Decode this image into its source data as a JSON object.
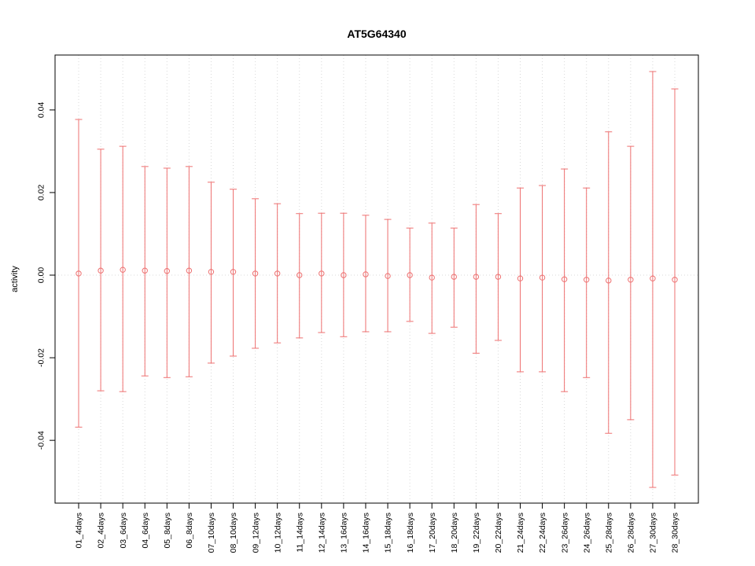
{
  "chart_data": {
    "type": "scatter",
    "title": "AT5G64340",
    "xlabel": "",
    "ylabel": "activity",
    "ylim": [
      -0.0552,
      0.0533
    ],
    "yticks": [
      -0.04,
      -0.02,
      0.0,
      0.02,
      0.04
    ],
    "grid": "dotted vertical line at each category, dotted horizontal line at y=0",
    "legend_position": "none",
    "categories": [
      "01_4days",
      "02_4days",
      "03_6days",
      "04_6days",
      "05_8days",
      "06_8days",
      "07_10days",
      "08_10days",
      "09_12days",
      "10_12days",
      "11_14days",
      "12_14days",
      "13_16days",
      "14_16days",
      "15_18days",
      "16_18days",
      "17_20days",
      "18_20days",
      "19_22days",
      "20_22days",
      "21_24days",
      "22_24days",
      "23_26days",
      "24_26days",
      "25_28days",
      "26_28days",
      "27_30days",
      "28_30days"
    ],
    "series": [
      {
        "name": "mean",
        "values": [
          0.0004,
          0.0011,
          0.0013,
          0.0011,
          0.001,
          0.0011,
          0.0008,
          0.0008,
          0.0004,
          0.0004,
          0.0,
          0.0004,
          0.0,
          0.0002,
          -0.0002,
          0.0,
          -0.0006,
          -0.0004,
          -0.0004,
          -0.0004,
          -0.0008,
          -0.0006,
          -0.001,
          -0.0011,
          -0.0013,
          -0.0011,
          -0.0008,
          -0.0011
        ]
      },
      {
        "name": "upper",
        "values": [
          0.0377,
          0.0305,
          0.0312,
          0.0263,
          0.0259,
          0.0263,
          0.0225,
          0.0208,
          0.0185,
          0.0173,
          0.0149,
          0.015,
          0.015,
          0.0145,
          0.0135,
          0.0114,
          0.0126,
          0.0114,
          0.0171,
          0.0149,
          0.0211,
          0.0217,
          0.0257,
          0.0211,
          0.0347,
          0.0312,
          0.0493,
          0.0451
        ]
      },
      {
        "name": "lower",
        "values": [
          -0.0368,
          -0.028,
          -0.0282,
          -0.0244,
          -0.0248,
          -0.0246,
          -0.0213,
          -0.0196,
          -0.0177,
          -0.0164,
          -0.0152,
          -0.0139,
          -0.0149,
          -0.0137,
          -0.0137,
          -0.0112,
          -0.0141,
          -0.0126,
          -0.0189,
          -0.0158,
          -0.0234,
          -0.0234,
          -0.0282,
          -0.0248,
          -0.0383,
          -0.035,
          -0.0514,
          -0.0484
        ]
      }
    ]
  },
  "colors": {
    "error_bar": "#ee7070",
    "grid": "#d8d8d8",
    "axis": "#000000",
    "background": "#ffffff"
  }
}
